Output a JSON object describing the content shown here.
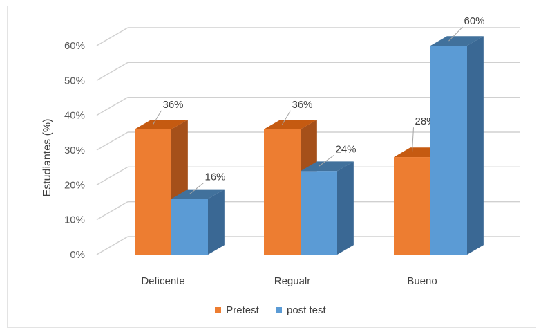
{
  "chart_data": {
    "type": "bar",
    "title": "",
    "xlabel": "",
    "ylabel": "Estudiantes (%)",
    "ylim": [
      0,
      60
    ],
    "yticks": [
      "0%",
      "10%",
      "20%",
      "30%",
      "40%",
      "50%",
      "60%"
    ],
    "categories": [
      "Deficente",
      "Regualr",
      "Bueno"
    ],
    "series": [
      {
        "name": "Pretest",
        "values": [
          36,
          36,
          28
        ],
        "labels": [
          "36%",
          "36%",
          "28%"
        ],
        "color": "#ED7D31",
        "side_color": "#A5501A",
        "top_color": "#C55A11"
      },
      {
        "name": "post test",
        "values": [
          16,
          24,
          60
        ],
        "labels": [
          "16%",
          "24%",
          "60%"
        ],
        "color": "#5B9BD5",
        "side_color": "#3A6894",
        "top_color": "#41719C"
      }
    ],
    "grid": true,
    "legend_position": "bottom"
  }
}
